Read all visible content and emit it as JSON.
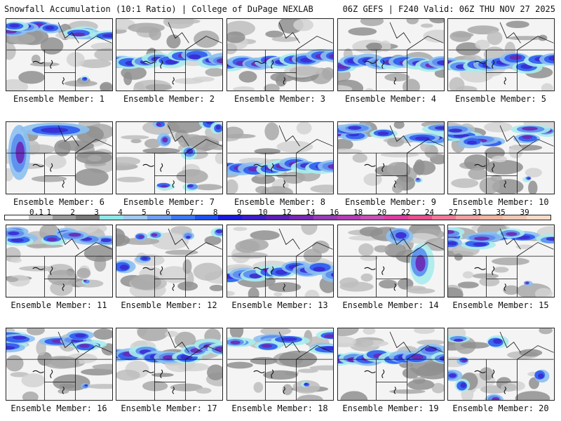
{
  "header": {
    "title": "Snowfall Accumulation (10:1 Ratio) | College of DuPage NEXLAB",
    "run_info": "06Z GEFS | F240 Valid: 06Z THU NOV 27 2025"
  },
  "colorbar": {
    "ticks": [
      "0.1",
      "1",
      "2",
      "3",
      "4",
      "5",
      "6",
      "7",
      "8",
      "9",
      "10",
      "12",
      "14",
      "16",
      "18",
      "20",
      "22",
      "24",
      "27",
      "31",
      "35",
      "39"
    ],
    "colors": [
      "#ffffff",
      "#c8c8c8",
      "#9a9a9a",
      "#787878",
      "#8fe8e8",
      "#a0c8f0",
      "#6ea0f0",
      "#3c78f0",
      "#1e50f0",
      "#1a1adc",
      "#3c1ec8",
      "#5a1eb4",
      "#7828b4",
      "#963cb4",
      "#b43cb4",
      "#c850b4",
      "#dc3ca0",
      "#e6508c",
      "#f07896",
      "#f0a0a0",
      "#f0b4a0",
      "#f0c8b4",
      "#f5dcc8"
    ]
  },
  "members": [
    {
      "label": "Ensemble Member: 1",
      "pattern": "north"
    },
    {
      "label": "Ensemble Member: 2",
      "pattern": "band"
    },
    {
      "label": "Ensemble Member: 3",
      "pattern": "band"
    },
    {
      "label": "Ensemble Member: 4",
      "pattern": "band"
    },
    {
      "label": "Ensemble Member: 5",
      "pattern": "band"
    },
    {
      "label": "Ensemble Member: 6",
      "pattern": "west"
    },
    {
      "label": "Ensemble Member: 7",
      "pattern": "scattered"
    },
    {
      "label": "Ensemble Member: 8",
      "pattern": "band"
    },
    {
      "label": "Ensemble Member: 9",
      "pattern": "north"
    },
    {
      "label": "Ensemble Member: 10",
      "pattern": "north"
    },
    {
      "label": "Ensemble Member: 11",
      "pattern": "north"
    },
    {
      "label": "Ensemble Member: 12",
      "pattern": "scattered"
    },
    {
      "label": "Ensemble Member: 13",
      "pattern": "band"
    },
    {
      "label": "Ensemble Member: 14",
      "pattern": "east"
    },
    {
      "label": "Ensemble Member: 15",
      "pattern": "north"
    },
    {
      "label": "Ensemble Member: 16",
      "pattern": "north"
    },
    {
      "label": "Ensemble Member: 17",
      "pattern": "band"
    },
    {
      "label": "Ensemble Member: 18",
      "pattern": "north"
    },
    {
      "label": "Ensemble Member: 19",
      "pattern": "band"
    },
    {
      "label": "Ensemble Member: 20",
      "pattern": "scattered"
    }
  ]
}
